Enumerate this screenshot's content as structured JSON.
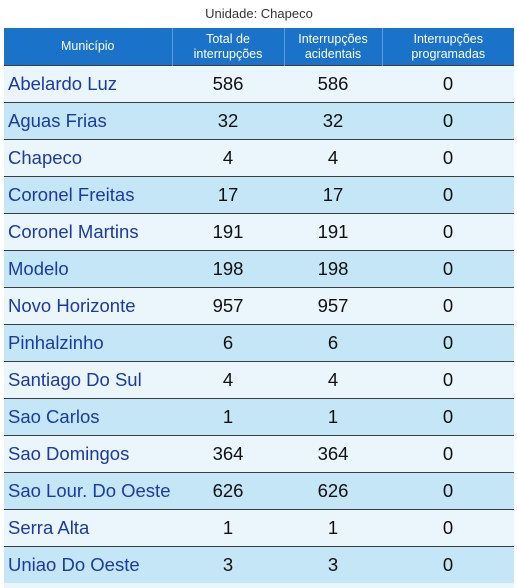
{
  "unit_label": "Unidade: Chapeco",
  "table": {
    "headers": {
      "municipio": "Município",
      "total": "Total de interrupções",
      "acidentais": "Interrupções acidentais",
      "programadas": "Interrupções programadas"
    },
    "rows": [
      {
        "name": "Abelardo Luz",
        "total": "586",
        "acidentais": "586",
        "programadas": "0"
      },
      {
        "name": "Aguas Frias",
        "total": "32",
        "acidentais": "32",
        "programadas": "0"
      },
      {
        "name": "Chapeco",
        "total": "4",
        "acidentais": "4",
        "programadas": "0"
      },
      {
        "name": "Coronel Freitas",
        "total": "17",
        "acidentais": "17",
        "programadas": "0"
      },
      {
        "name": "Coronel Martins",
        "total": "191",
        "acidentais": "191",
        "programadas": "0"
      },
      {
        "name": "Modelo",
        "total": "198",
        "acidentais": "198",
        "programadas": "0"
      },
      {
        "name": "Novo Horizonte",
        "total": "957",
        "acidentais": "957",
        "programadas": "0"
      },
      {
        "name": "Pinhalzinho",
        "total": "6",
        "acidentais": "6",
        "programadas": "0"
      },
      {
        "name": "Santiago Do Sul",
        "total": "4",
        "acidentais": "4",
        "programadas": "0"
      },
      {
        "name": "Sao Carlos",
        "total": "1",
        "acidentais": "1",
        "programadas": "0"
      },
      {
        "name": "Sao Domingos",
        "total": "364",
        "acidentais": "364",
        "programadas": "0"
      },
      {
        "name": "Sao Lour. Do Oeste",
        "total": "626",
        "acidentais": "626",
        "programadas": "0"
      },
      {
        "name": "Serra Alta",
        "total": "1",
        "acidentais": "1",
        "programadas": "0"
      },
      {
        "name": "Uniao Do Oeste",
        "total": "3",
        "acidentais": "3",
        "programadas": "0"
      }
    ]
  }
}
